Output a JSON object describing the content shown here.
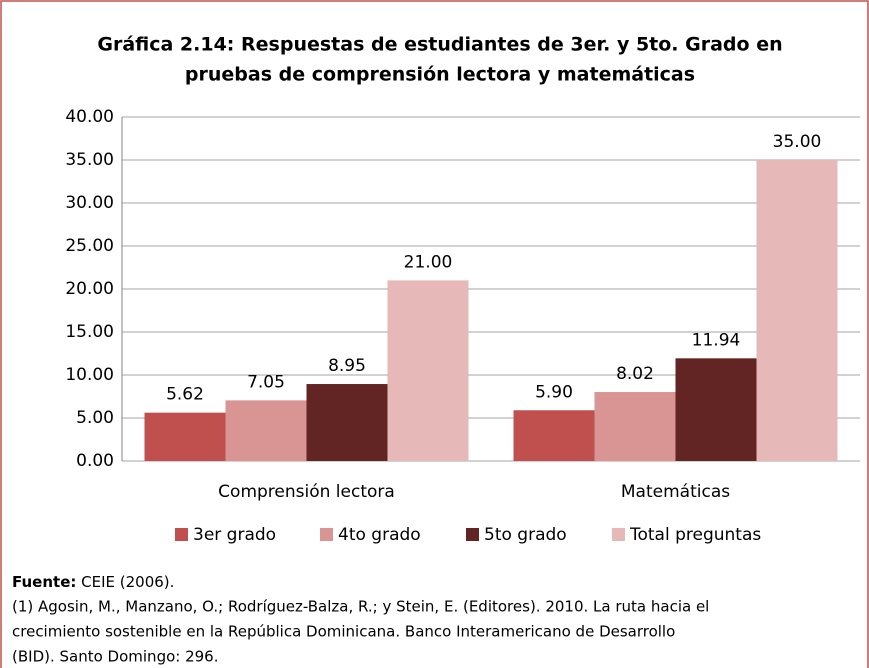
{
  "chart_data": {
    "type": "bar",
    "title": [
      "Gráfica 2.14: Respuestas de estudiantes de 3er. y 5to. Grado en",
      "pruebas de comprensión lectora y matemáticas"
    ],
    "categories": [
      "Comprensión lectora",
      "Matemáticas"
    ],
    "series": [
      {
        "name": "3er grado",
        "color": "#c0504d",
        "values": [
          5.62,
          5.9
        ],
        "value_labels": [
          "5.62",
          "5.90"
        ]
      },
      {
        "name": "4to grado",
        "color": "#d99594",
        "values": [
          7.05,
          8.02
        ],
        "value_labels": [
          "7.05",
          "8.02"
        ]
      },
      {
        "name": "5to grado",
        "color": "#632523",
        "values": [
          8.95,
          11.94
        ],
        "value_labels": [
          "8.95",
          "11.94"
        ]
      },
      {
        "name": "Total preguntas",
        "color": "#e6b9b8",
        "values": [
          21,
          35
        ],
        "value_labels": [
          "21.00",
          "35.00"
        ]
      }
    ],
    "ylim": [
      0,
      40
    ],
    "yticks": [
      {
        "value": 0,
        "label": "0.00"
      },
      {
        "value": 5,
        "label": "5.00"
      },
      {
        "value": 10,
        "label": "10.00"
      },
      {
        "value": 15,
        "label": "15.00"
      },
      {
        "value": 20,
        "label": "20.00"
      },
      {
        "value": 25,
        "label": "25.00"
      },
      {
        "value": 30,
        "label": "30.00"
      },
      {
        "value": 35,
        "label": "35.00"
      },
      {
        "value": 40,
        "label": "40.00"
      }
    ],
    "grid": true,
    "legend": "bottom",
    "source_label": "Fuente:",
    "source": "CEIE (2006).",
    "note": [
      "(1) Agosin, M.,  Manzano, O.; Rodríguez-Balza, R.; y Stein, E. (Editores). 2010. La ruta hacia el",
      "crecimiento sostenible en la República Dominicana. Banco Interamericano de Desarrollo",
      "(BID). Santo Domingo: 296."
    ]
  }
}
